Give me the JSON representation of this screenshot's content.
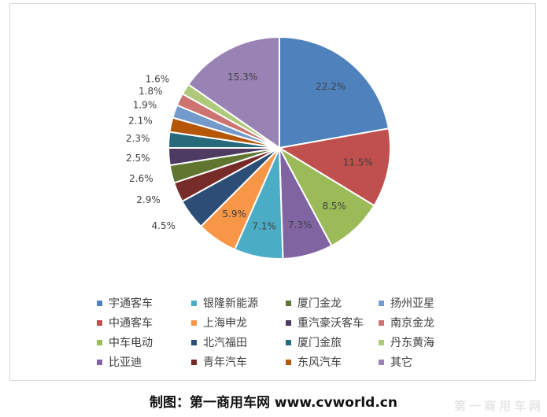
{
  "chart_data": {
    "type": "pie",
    "slices": [
      {
        "name": "宇通客车",
        "value": 22.2,
        "label": "22.2%",
        "color": "#4F81BD"
      },
      {
        "name": "中通客车",
        "value": 11.5,
        "label": "11.5%",
        "color": "#C0504D"
      },
      {
        "name": "中车电动",
        "value": 8.5,
        "label": "8.5%",
        "color": "#9BBB59"
      },
      {
        "name": "比亚迪",
        "value": 7.3,
        "label": "7.3%",
        "color": "#8064A2"
      },
      {
        "name": "银隆新能源",
        "value": 7.1,
        "label": "7.1%",
        "color": "#4BACC6"
      },
      {
        "name": "上海申龙",
        "value": 5.9,
        "label": "5.9%",
        "color": "#F79646"
      },
      {
        "name": "北汽福田",
        "value": 4.5,
        "label": "4.5%",
        "color": "#2C4D75"
      },
      {
        "name": "青年汽车",
        "value": 2.9,
        "label": "2.9%",
        "color": "#772C2A"
      },
      {
        "name": "厦门金龙",
        "value": 2.6,
        "label": "2.6%",
        "color": "#5F7530"
      },
      {
        "name": "重汽豪沃客车",
        "value": 2.5,
        "label": "2.5%",
        "color": "#4D3B62"
      },
      {
        "name": "厦门金旅",
        "value": 2.3,
        "label": "2.3%",
        "color": "#276A7C"
      },
      {
        "name": "东风汽车",
        "value": 2.1,
        "label": "2.1%",
        "color": "#B65708"
      },
      {
        "name": "扬州亚星",
        "value": 1.9,
        "label": "1.9%",
        "color": "#729ACA"
      },
      {
        "name": "南京金龙",
        "value": 1.8,
        "label": "1.8%",
        "color": "#CD7371"
      },
      {
        "name": "丹东黄海",
        "value": 1.6,
        "label": "1.6%",
        "color": "#AFC97A"
      },
      {
        "name": "其它",
        "value": 15.3,
        "label": "15.3%",
        "color": "#9983B5"
      }
    ],
    "legend_position": "bottom"
  },
  "caption": "制图：第一商用车网 www.cvworld.cn",
  "watermark": "第一商用车网"
}
